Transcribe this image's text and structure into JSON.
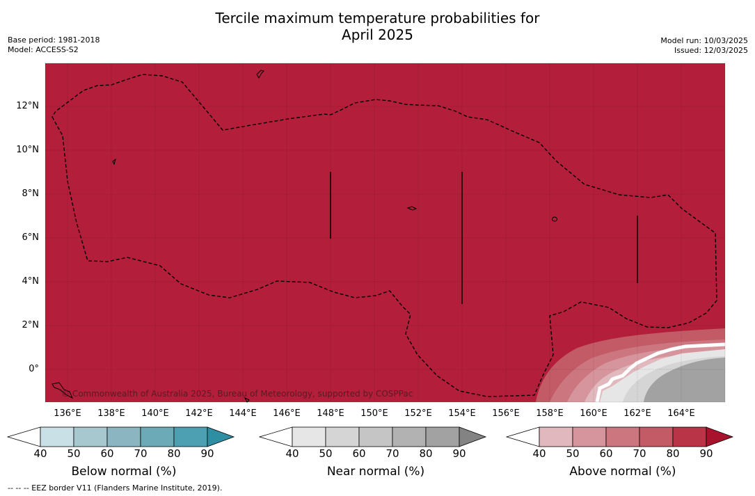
{
  "header": {
    "title_line1": "Tercile maximum temperature probabilities for",
    "title_line2": "April 2025",
    "base_period": "Base period: 1981-2018",
    "model": "Model: ACCESS-S2",
    "model_run": "Model run: 10/03/2025",
    "issued": "Issued: 12/03/2025"
  },
  "map": {
    "lon_ticks": [
      "136°E",
      "138°E",
      "140°E",
      "142°E",
      "144°E",
      "146°E",
      "148°E",
      "150°E",
      "152°E",
      "154°E",
      "156°E",
      "158°E",
      "160°E",
      "162°E",
      "164°E"
    ],
    "lat_ticks": [
      "12°N",
      "10°N",
      "8°N",
      "6°N",
      "4°N",
      "2°N",
      "0°"
    ],
    "copyright": "© Commonwealth of Australia 2025, Bureau of Meteorology, supported by COSPPac",
    "colors": {
      "dominant_above": "#b31e3a",
      "border": "#000000"
    }
  },
  "colorbars": [
    {
      "label": "Below normal (%)",
      "ticks": [
        "40",
        "50",
        "60",
        "70",
        "80",
        "90"
      ],
      "colors": [
        "#ffffff",
        "#c8e0e6",
        "#a8c8cf",
        "#8bb6c1",
        "#6caab8",
        "#4da0b2",
        "#2e8fa3"
      ]
    },
    {
      "label": "Near normal (%)",
      "ticks": [
        "40",
        "50",
        "60",
        "70",
        "80",
        "90"
      ],
      "colors": [
        "#ffffff",
        "#e6e6e6",
        "#d5d5d5",
        "#c5c5c5",
        "#b2b2b2",
        "#a2a2a2",
        "#838383"
      ]
    },
    {
      "label": "Above normal (%)",
      "ticks": [
        "40",
        "50",
        "60",
        "70",
        "80",
        "90"
      ],
      "colors": [
        "#ffffff",
        "#e0b8bd",
        "#d6959c",
        "#cc7680",
        "#c25b66",
        "#b93447",
        "#a8122c"
      ]
    }
  ],
  "footer": "--  --  -- EEZ border V11 (Flanders Marine Institute, 2019)."
}
